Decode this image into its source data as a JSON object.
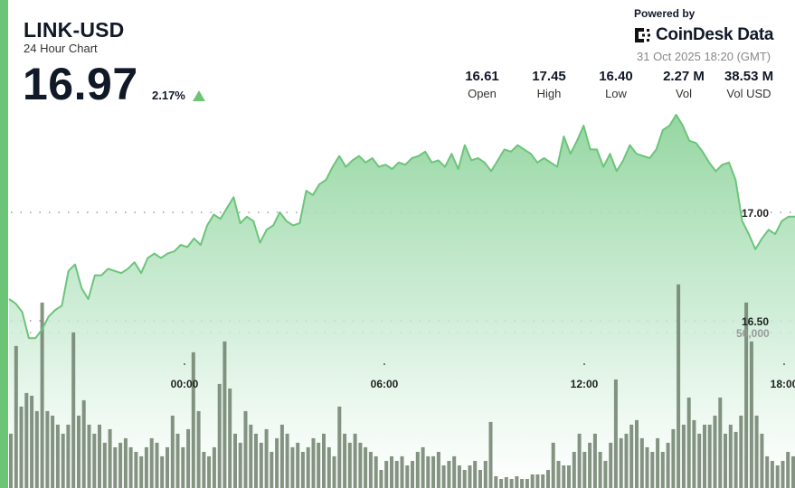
{
  "header": {
    "pair": "LINK-USD",
    "subtitle": "24 Hour Chart",
    "price": "16.97",
    "change_pct": "2.17%",
    "change_direction": "up",
    "powered_by": "Powered by",
    "brand": "CoinDesk Data",
    "timestamp": "31 Oct 2025 18:20 (GMT)"
  },
  "stats": [
    {
      "value": "16.61",
      "label": "Open"
    },
    {
      "value": "17.45",
      "label": "High"
    },
    {
      "value": "16.40",
      "label": "Low"
    },
    {
      "value": "2.27 M",
      "label": "Vol"
    },
    {
      "value": "38.53 M",
      "label": "Vol USD"
    }
  ],
  "colors": {
    "accent": "#6cc476",
    "line": "#6cc47a",
    "volume": "#6f806c",
    "text": "#111827"
  },
  "chart_data": {
    "type": "line",
    "xticks": [
      "00:00",
      "06:00",
      "12:00",
      "18:00"
    ],
    "price_ticks": [
      {
        "value": 17.0,
        "label": "17.00"
      },
      {
        "value": 16.5,
        "label": "16.50"
      }
    ],
    "volume_ticks": [
      {
        "value": 50000,
        "label": "50,000"
      }
    ],
    "grid": "dotted horizontal",
    "series": [
      {
        "type": "area",
        "values": [
          16.6,
          16.58,
          16.54,
          16.42,
          16.42,
          16.46,
          16.52,
          16.55,
          16.57,
          16.73,
          16.76,
          16.65,
          16.6,
          16.71,
          16.71,
          16.74,
          16.73,
          16.72,
          16.74,
          16.77,
          16.72,
          16.79,
          16.81,
          16.79,
          16.81,
          16.82,
          16.85,
          16.84,
          16.88,
          16.85,
          16.94,
          16.99,
          16.97,
          17.02,
          17.07,
          16.95,
          16.98,
          16.96,
          16.86,
          16.92,
          16.94,
          17.0,
          16.96,
          16.94,
          16.95,
          17.1,
          17.08,
          17.13,
          17.15,
          17.21,
          17.26,
          17.21,
          17.24,
          17.26,
          17.23,
          17.25,
          17.21,
          17.22,
          17.2,
          17.23,
          17.22,
          17.25,
          17.26,
          17.28,
          17.23,
          17.24,
          17.21,
          17.27,
          17.2,
          17.31,
          17.24,
          17.25,
          17.23,
          17.19,
          17.24,
          17.29,
          17.28,
          17.31,
          17.29,
          17.27,
          17.23,
          17.25,
          17.23,
          17.21,
          17.35,
          17.27,
          17.33,
          17.4,
          17.29,
          17.29,
          17.21,
          17.27,
          17.19,
          17.24,
          17.31,
          17.27,
          17.26,
          17.25,
          17.29,
          17.38,
          17.4,
          17.45,
          17.4,
          17.33,
          17.32,
          17.28,
          17.23,
          17.19,
          17.22,
          17.23,
          17.15,
          16.96,
          16.9,
          16.83,
          16.88,
          16.92,
          16.9,
          16.96,
          16.98,
          16.98
        ]
      },
      {
        "type": "bar",
        "values": [
          17460,
          45690,
          26190,
          30560,
          29680,
          24740,
          59660,
          24740,
          23280,
          20370,
          17460,
          20370,
          50050,
          23280,
          28230,
          20370,
          17460,
          20370,
          14550,
          18920,
          13100,
          14550,
          16010,
          13100,
          11640,
          10190,
          13100,
          16010,
          14550,
          10190,
          13100,
          23280,
          17460,
          13100,
          18920,
          43650,
          24740,
          11640,
          10190,
          13100,
          33470,
          47140,
          32010,
          17460,
          14550,
          24740,
          20370,
          17460,
          14550,
          18920,
          11640,
          16010,
          20370,
          17460,
          13100,
          14550,
          11640,
          13100,
          16010,
          14550,
          17460,
          13100,
          10190,
          26190,
          17460,
          14550,
          17460,
          14550,
          13100,
          11640,
          10190,
          5820,
          8730,
          10190,
          8730,
          10190,
          7280,
          8730,
          11640,
          13100,
          10190,
          10190,
          11640,
          7280,
          8730,
          10190,
          7280,
          5820,
          7280,
          8730,
          5820,
          8730,
          21240,
          3780,
          2910,
          3490,
          2910,
          3780,
          2910,
          2910,
          4370,
          4370,
          4370,
          5820,
          14550,
          8730,
          7280,
          7280,
          11640,
          17460,
          11640,
          14550,
          17460,
          11640,
          8730,
          14550,
          34920,
          16010,
          17460,
          20370,
          21830,
          16010,
          13100,
          11640,
          16010,
          11640,
          14550,
          18920,
          65480,
          20370,
          29100,
          21830,
          17460,
          20370,
          20370,
          23280,
          29100,
          17460,
          20370,
          18040,
          23280,
          59660,
          47140,
          23280,
          17460,
          10190,
          8730,
          7280,
          8730,
          11640,
          10190
        ]
      }
    ]
  }
}
